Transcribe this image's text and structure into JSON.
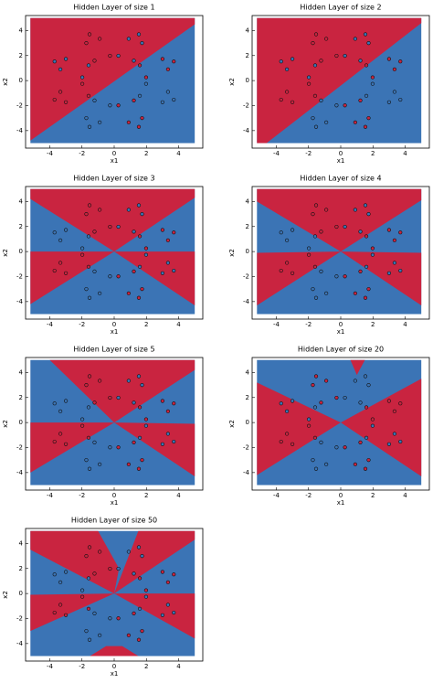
{
  "chart_data": [
    {
      "type": "scatter",
      "title": "Hidden Layer of size 1",
      "xlabel": "x1",
      "ylabel": "x2",
      "xlim": [
        -5.5,
        5.5
      ],
      "ylim": [
        -5.4,
        5.2
      ],
      "xticks": [
        -4,
        -2,
        0,
        2,
        4
      ],
      "yticks": [
        -4,
        -2,
        0,
        2,
        4
      ],
      "field": {
        "color": "#3b74b5",
        "x": [
          -5.2,
          5.0
        ],
        "y": [
          -5,
          5
        ]
      },
      "regions": [
        {
          "color": "#c92440",
          "x": [
            -5.2,
            5.0,
            5.0,
            -5.2
          ],
          "y": [
            -4.8,
            4.5,
            5,
            5
          ]
        }
      ]
    },
    {
      "type": "scatter",
      "title": "Hidden Layer of size 2",
      "xlabel": "x1",
      "ylabel": "x2",
      "xlim": [
        -5.5,
        5.5
      ],
      "ylim": [
        -5.4,
        5.2
      ],
      "xticks": [
        -4,
        -2,
        0,
        2,
        4
      ],
      "yticks": [
        -4,
        -2,
        0,
        2,
        4
      ],
      "field": {
        "color": "#3b74b5",
        "x": [
          -5.2,
          5.0
        ],
        "y": [
          -5,
          5
        ]
      },
      "regions": [
        {
          "color": "#c92440",
          "x": [
            -5.2,
            -4.6,
            5.0,
            5.0,
            -5.2
          ],
          "y": [
            -5,
            -5,
            4.6,
            5,
            5
          ]
        }
      ]
    },
    {
      "type": "scatter",
      "title": "Hidden Layer of size 3",
      "xlabel": "x1",
      "ylabel": "x2",
      "xlim": [
        -5.5,
        5.5
      ],
      "ylim": [
        -5.4,
        5.2
      ],
      "xticks": [
        -4,
        -2,
        0,
        2,
        4
      ],
      "yticks": [
        -4,
        -2,
        0,
        2,
        4
      ],
      "field": {
        "color": "#3b74b5",
        "x": [
          -5.2,
          5.0
        ],
        "y": [
          -5,
          5
        ]
      },
      "regions": [
        {
          "color": "#c92440",
          "x": [
            0,
            -5.2,
            -5.2,
            5,
            5
          ],
          "y": [
            0,
            4.2,
            5,
            5,
            4.3
          ]
        },
        {
          "color": "#c92440",
          "x": [
            0,
            -5.2,
            -5.2
          ],
          "y": [
            0,
            0,
            -4.2
          ]
        },
        {
          "color": "#c92440",
          "x": [
            0,
            5,
            5
          ],
          "y": [
            0,
            0,
            -4.3
          ]
        }
      ]
    },
    {
      "type": "scatter",
      "title": "Hidden Layer of size 4",
      "xlabel": "x1",
      "ylabel": "x2",
      "xlim": [
        -5.5,
        5.5
      ],
      "ylim": [
        -5.4,
        5.2
      ],
      "xticks": [
        -4,
        -2,
        0,
        2,
        4
      ],
      "yticks": [
        -4,
        -2,
        0,
        2,
        4
      ],
      "field": {
        "color": "#3b74b5",
        "x": [
          -5.2,
          5.0
        ],
        "y": [
          -5,
          5
        ]
      },
      "regions": [
        {
          "color": "#c92440",
          "x": [
            0,
            -5.2,
            -5.2,
            5,
            5
          ],
          "y": [
            0,
            4.0,
            5,
            5,
            4.1
          ]
        },
        {
          "color": "#c92440",
          "x": [
            0,
            -5.2,
            -5.2
          ],
          "y": [
            0,
            -0.1,
            -4.3
          ]
        },
        {
          "color": "#c92440",
          "x": [
            0,
            5,
            5
          ],
          "y": [
            0,
            -0.1,
            -4.3
          ]
        }
      ]
    },
    {
      "type": "scatter",
      "title": "Hidden Layer of size 5",
      "xlabel": "x1",
      "ylabel": "x2",
      "xlim": [
        -5.5,
        5.5
      ],
      "ylim": [
        -5.4,
        5.2
      ],
      "xticks": [
        -4,
        -2,
        0,
        2,
        4
      ],
      "yticks": [
        -4,
        -2,
        0,
        2,
        4
      ],
      "field": {
        "color": "#3b74b5",
        "x": [
          -5.2,
          5.0
        ],
        "y": [
          -5,
          5
        ]
      },
      "regions": [
        {
          "color": "#c92440",
          "x": [
            0,
            -4.0,
            5,
            5
          ],
          "y": [
            0,
            5,
            5,
            4.2
          ]
        },
        {
          "color": "#c92440",
          "x": [
            0,
            -5.2,
            -5.2
          ],
          "y": [
            0,
            0,
            -4.0
          ]
        },
        {
          "color": "#c92440",
          "x": [
            0,
            5,
            5
          ],
          "y": [
            0,
            -0.1,
            -4.3
          ]
        }
      ]
    },
    {
      "type": "scatter",
      "title": "Hidden Layer of size 20",
      "xlabel": "x1",
      "ylabel": "x2",
      "xlim": [
        -5.5,
        5.5
      ],
      "ylim": [
        -5.4,
        5.2
      ],
      "xticks": [
        -4,
        -2,
        0,
        2,
        4
      ],
      "yticks": [
        -4,
        -2,
        0,
        2,
        4
      ],
      "field": {
        "color": "#3b74b5",
        "x": [
          -5.2,
          5.0
        ],
        "y": [
          -5,
          5
        ]
      },
      "regions": [
        {
          "color": "#c92440",
          "x": [
            0,
            -5.2,
            -5.2
          ],
          "y": [
            0,
            3.2,
            -4.2
          ]
        },
        {
          "color": "#c92440",
          "x": [
            0,
            5,
            5
          ],
          "y": [
            0,
            3.5,
            -4.3
          ]
        },
        {
          "color": "#c92440",
          "x": [
            0.6,
            1.0,
            1.5
          ],
          "y": [
            5,
            3.8,
            5
          ]
        }
      ]
    },
    {
      "type": "scatter",
      "title": "Hidden Layer of size 50",
      "xlabel": "x1",
      "ylabel": "x2",
      "xlim": [
        -5.5,
        5.5
      ],
      "ylim": [
        -5.4,
        5.2
      ],
      "xticks": [
        -4,
        -2,
        0,
        2,
        4
      ],
      "yticks": [
        -4,
        -2,
        0,
        2,
        4
      ],
      "field": {
        "color": "#3b74b5",
        "x": [
          -5.2,
          5.0
        ],
        "y": [
          -5,
          5
        ]
      },
      "regions": [
        {
          "color": "#c92440",
          "x": [
            0,
            -5.2,
            -5.2,
            -1.0,
            0.3
          ],
          "y": [
            0,
            3.5,
            5,
            5,
            2
          ]
        },
        {
          "color": "#c92440",
          "x": [
            0,
            1.5,
            5,
            5
          ],
          "y": [
            0,
            5,
            5,
            4.3
          ]
        },
        {
          "color": "#c92440",
          "x": [
            0,
            -5.2,
            -5.2
          ],
          "y": [
            0,
            -0.1,
            -3.0
          ]
        },
        {
          "color": "#c92440",
          "x": [
            0,
            5,
            5
          ],
          "y": [
            0,
            0,
            -3.6
          ]
        },
        {
          "color": "#c92440",
          "x": [
            -1.5,
            -0.5,
            0.5,
            1.5
          ],
          "y": [
            -5,
            -4.2,
            -4.2,
            -5
          ]
        }
      ]
    }
  ],
  "points": {
    "series": [
      {
        "color": "#c92440",
        "x": [
          1.98,
          3.34,
          3.7,
          3.0,
          1.59,
          -0.26,
          -0.9,
          -1.53,
          -1.73,
          -1.22,
          -1.98,
          -3.34,
          -3.7,
          -3.0,
          -1.59,
          0.26,
          0.9,
          1.53,
          1.73,
          1.22
        ],
        "y": [
          0.26,
          0.9,
          1.53,
          1.73,
          1.22,
          1.98,
          3.34,
          3.7,
          3.0,
          1.59,
          -0.26,
          -0.9,
          -1.53,
          -1.73,
          -1.22,
          -1.98,
          -3.34,
          -3.7,
          -3.0,
          -1.59
        ]
      },
      {
        "color": "#3b74b5",
        "x": [
          1.22,
          1.73,
          1.53,
          0.9,
          0.26,
          -1.59,
          -3.0,
          -3.7,
          -3.34,
          -1.98,
          -1.22,
          -1.73,
          -1.53,
          -0.9,
          -0.26,
          1.59,
          3.0,
          3.7,
          3.34,
          1.98
        ],
        "y": [
          1.59,
          3.0,
          3.7,
          3.34,
          1.98,
          1.22,
          1.73,
          1.53,
          0.9,
          0.26,
          -1.59,
          -3.0,
          -3.7,
          -3.34,
          -1.98,
          -1.22,
          -1.73,
          -1.53,
          -0.9,
          -0.26
        ]
      }
    ]
  }
}
